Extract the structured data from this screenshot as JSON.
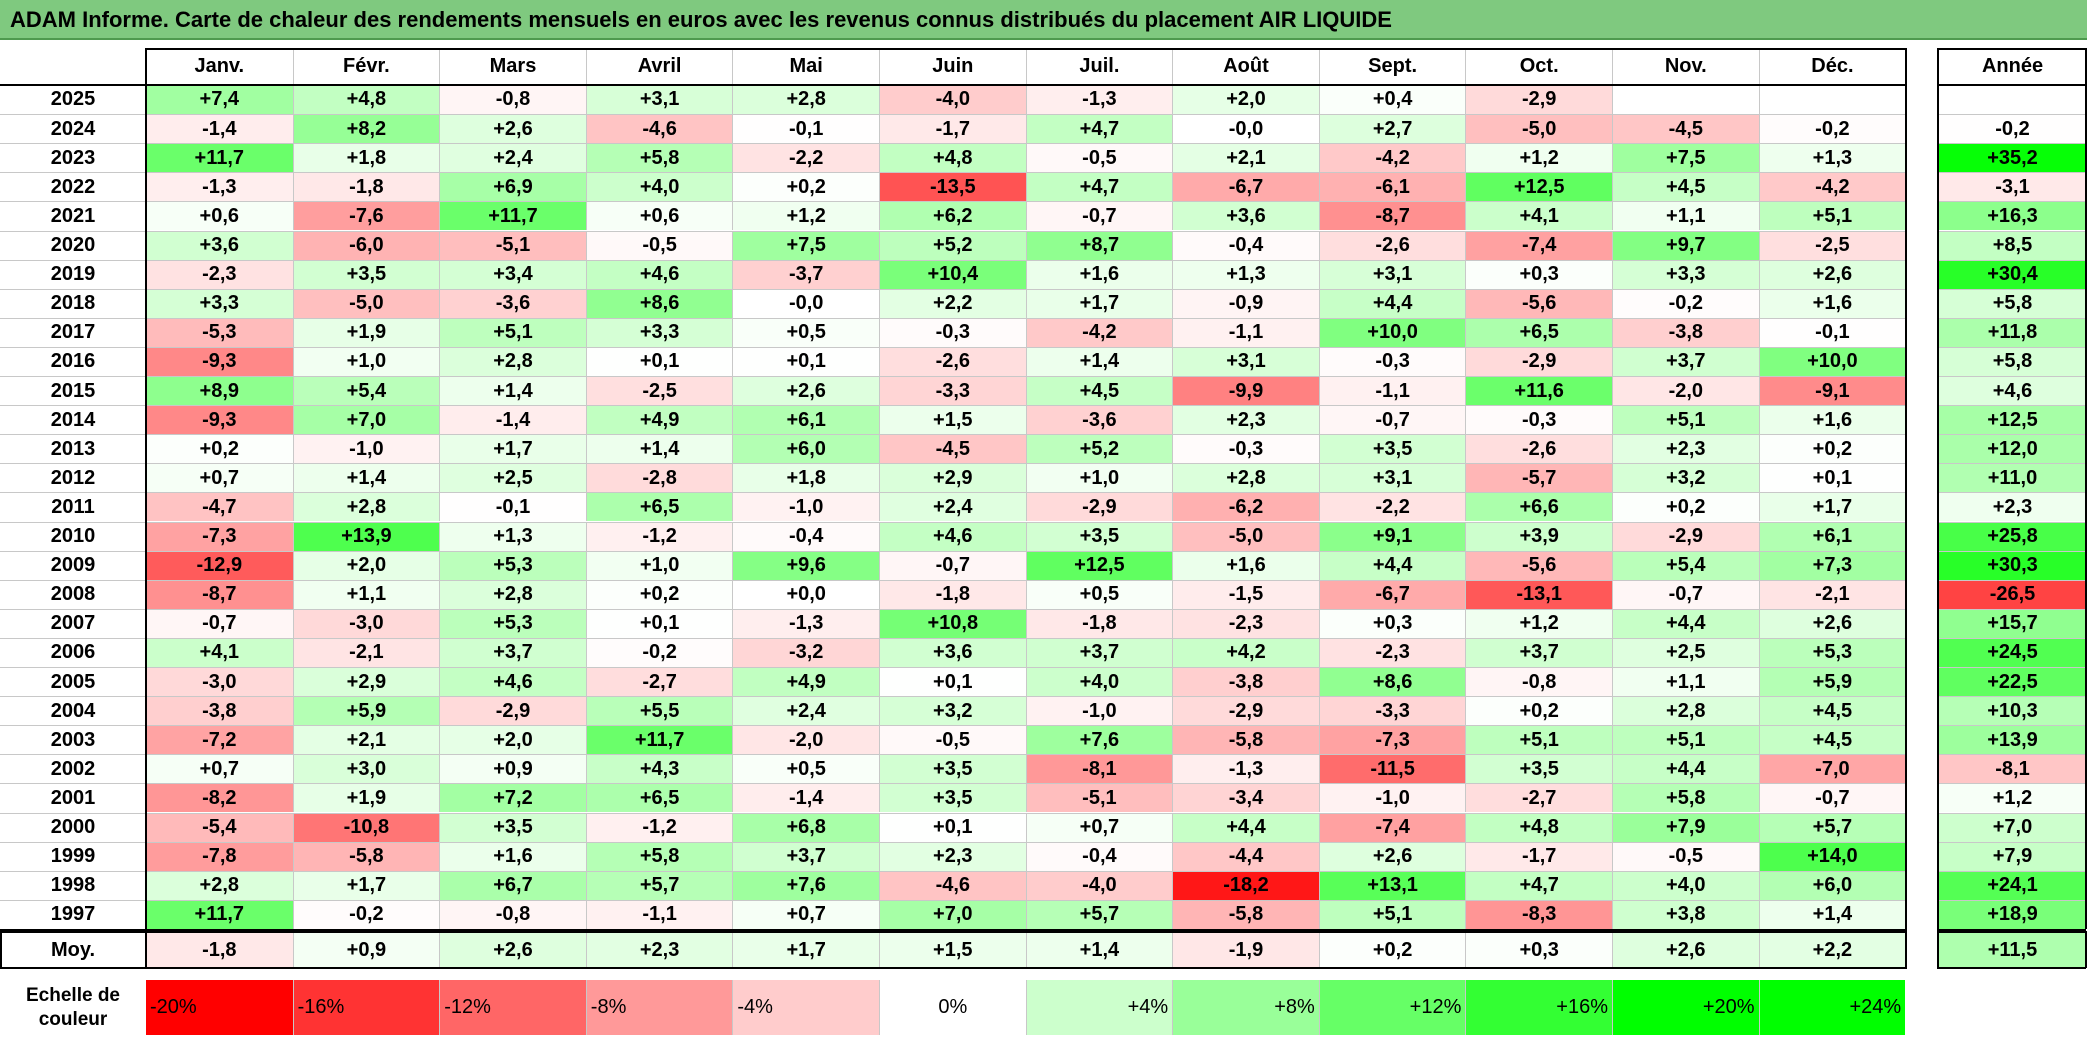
{
  "title": "ADAM Informe. Carte de chaleur des rendements mensuels en euros avec les revenus connus distribués du placement AIR LIQUIDE",
  "chart_data": {
    "type": "heatmap",
    "months": [
      "Janv.",
      "Févr.",
      "Mars",
      "Avril",
      "Mai",
      "Juin",
      "Juil.",
      "Août",
      "Sept.",
      "Oct.",
      "Nov.",
      "Déc."
    ],
    "year_column_label": "Année",
    "avg_label": "Moy.",
    "rows": [
      {
        "year": "2025",
        "values": [
          "+7,4",
          "+4,8",
          "-0,8",
          "+3,1",
          "+2,8",
          "-4,0",
          "-1,3",
          "+2,0",
          "+0,4",
          "-2,9",
          "",
          ""
        ],
        "annual": ""
      },
      {
        "year": "2024",
        "values": [
          "-1,4",
          "+8,2",
          "+2,6",
          "-4,6",
          "-0,1",
          "-1,7",
          "+4,7",
          "-0,0",
          "+2,7",
          "-5,0",
          "-4,5",
          "-0,2"
        ],
        "annual": "-0,2"
      },
      {
        "year": "2023",
        "values": [
          "+11,7",
          "+1,8",
          "+2,4",
          "+5,8",
          "-2,2",
          "+4,8",
          "-0,5",
          "+2,1",
          "-4,2",
          "+1,2",
          "+7,5",
          "+1,3"
        ],
        "annual": "+35,2"
      },
      {
        "year": "2022",
        "values": [
          "-1,3",
          "-1,8",
          "+6,9",
          "+4,0",
          "+0,2",
          "-13,5",
          "+4,7",
          "-6,7",
          "-6,1",
          "+12,5",
          "+4,5",
          "-4,2"
        ],
        "annual": "-3,1"
      },
      {
        "year": "2021",
        "values": [
          "+0,6",
          "-7,6",
          "+11,7",
          "+0,6",
          "+1,2",
          "+6,2",
          "-0,7",
          "+3,6",
          "-8,7",
          "+4,1",
          "+1,1",
          "+5,1"
        ],
        "annual": "+16,3"
      },
      {
        "year": "2020",
        "values": [
          "+3,6",
          "-6,0",
          "-5,1",
          "-0,5",
          "+7,5",
          "+5,2",
          "+8,7",
          "-0,4",
          "-2,6",
          "-7,4",
          "+9,7",
          "-2,5"
        ],
        "annual": "+8,5"
      },
      {
        "year": "2019",
        "values": [
          "-2,3",
          "+3,5",
          "+3,4",
          "+4,6",
          "-3,7",
          "+10,4",
          "+1,6",
          "+1,3",
          "+3,1",
          "+0,3",
          "+3,3",
          "+2,6"
        ],
        "annual": "+30,4"
      },
      {
        "year": "2018",
        "values": [
          "+3,3",
          "-5,0",
          "-3,6",
          "+8,6",
          "-0,0",
          "+2,2",
          "+1,7",
          "-0,9",
          "+4,4",
          "-5,6",
          "-0,2",
          "+1,6"
        ],
        "annual": "+5,8"
      },
      {
        "year": "2017",
        "values": [
          "-5,3",
          "+1,9",
          "+5,1",
          "+3,3",
          "+0,5",
          "-0,3",
          "-4,2",
          "-1,1",
          "+10,0",
          "+6,5",
          "-3,8",
          "-0,1"
        ],
        "annual": "+11,8"
      },
      {
        "year": "2016",
        "values": [
          "-9,3",
          "+1,0",
          "+2,8",
          "+0,1",
          "+0,1",
          "-2,6",
          "+1,4",
          "+3,1",
          "-0,3",
          "-2,9",
          "+3,7",
          "+10,0"
        ],
        "annual": "+5,8"
      },
      {
        "year": "2015",
        "values": [
          "+8,9",
          "+5,4",
          "+1,4",
          "-2,5",
          "+2,6",
          "-3,3",
          "+4,5",
          "-9,9",
          "-1,1",
          "+11,6",
          "-2,0",
          "-9,1"
        ],
        "annual": "+4,6"
      },
      {
        "year": "2014",
        "values": [
          "-9,3",
          "+7,0",
          "-1,4",
          "+4,9",
          "+6,1",
          "+1,5",
          "-3,6",
          "+2,3",
          "-0,7",
          "-0,3",
          "+5,1",
          "+1,6"
        ],
        "annual": "+12,5"
      },
      {
        "year": "2013",
        "values": [
          "+0,2",
          "-1,0",
          "+1,7",
          "+1,4",
          "+6,0",
          "-4,5",
          "+5,2",
          "-0,3",
          "+3,5",
          "-2,6",
          "+2,3",
          "+0,2"
        ],
        "annual": "+12,0"
      },
      {
        "year": "2012",
        "values": [
          "+0,7",
          "+1,4",
          "+2,5",
          "-2,8",
          "+1,8",
          "+2,9",
          "+1,0",
          "+2,8",
          "+3,1",
          "-5,7",
          "+3,2",
          "+0,1"
        ],
        "annual": "+11,0"
      },
      {
        "year": "2011",
        "values": [
          "-4,7",
          "+2,8",
          "-0,1",
          "+6,5",
          "-1,0",
          "+2,4",
          "-2,9",
          "-6,2",
          "-2,2",
          "+6,6",
          "+0,2",
          "+1,7"
        ],
        "annual": "+2,3"
      },
      {
        "year": "2010",
        "values": [
          "-7,3",
          "+13,9",
          "+1,3",
          "-1,2",
          "-0,4",
          "+4,6",
          "+3,5",
          "-5,0",
          "+9,1",
          "+3,9",
          "-2,9",
          "+6,1"
        ],
        "annual": "+25,8"
      },
      {
        "year": "2009",
        "values": [
          "-12,9",
          "+2,0",
          "+5,3",
          "+1,0",
          "+9,6",
          "-0,7",
          "+12,5",
          "+1,6",
          "+4,4",
          "-5,6",
          "+5,4",
          "+7,3"
        ],
        "annual": "+30,3"
      },
      {
        "year": "2008",
        "values": [
          "-8,7",
          "+1,1",
          "+2,8",
          "+0,2",
          "+0,0",
          "-1,8",
          "+0,5",
          "-1,5",
          "-6,7",
          "-13,1",
          "-0,7",
          "-2,1"
        ],
        "annual": "-26,5"
      },
      {
        "year": "2007",
        "values": [
          "-0,7",
          "-3,0",
          "+5,3",
          "+0,1",
          "-1,3",
          "+10,8",
          "-1,8",
          "-2,3",
          "+0,3",
          "+1,2",
          "+4,4",
          "+2,6"
        ],
        "annual": "+15,7"
      },
      {
        "year": "2006",
        "values": [
          "+4,1",
          "-2,1",
          "+3,7",
          "-0,2",
          "-3,2",
          "+3,6",
          "+3,7",
          "+4,2",
          "-2,3",
          "+3,7",
          "+2,5",
          "+5,3"
        ],
        "annual": "+24,5"
      },
      {
        "year": "2005",
        "values": [
          "-3,0",
          "+2,9",
          "+4,6",
          "-2,7",
          "+4,9",
          "+0,1",
          "+4,0",
          "-3,8",
          "+8,6",
          "-0,8",
          "+1,1",
          "+5,9"
        ],
        "annual": "+22,5"
      },
      {
        "year": "2004",
        "values": [
          "-3,8",
          "+5,9",
          "-2,9",
          "+5,5",
          "+2,4",
          "+3,2",
          "-1,0",
          "-2,9",
          "-3,3",
          "+0,2",
          "+2,8",
          "+4,5"
        ],
        "annual": "+10,3"
      },
      {
        "year": "2003",
        "values": [
          "-7,2",
          "+2,1",
          "+2,0",
          "+11,7",
          "-2,0",
          "-0,5",
          "+7,6",
          "-5,8",
          "-7,3",
          "+5,1",
          "+5,1",
          "+4,5"
        ],
        "annual": "+13,9"
      },
      {
        "year": "2002",
        "values": [
          "+0,7",
          "+3,0",
          "+0,9",
          "+4,3",
          "+0,5",
          "+3,5",
          "-8,1",
          "-1,3",
          "-11,5",
          "+3,5",
          "+4,4",
          "-7,0"
        ],
        "annual": "-8,1"
      },
      {
        "year": "2001",
        "values": [
          "-8,2",
          "+1,9",
          "+7,2",
          "+6,5",
          "-1,4",
          "+3,5",
          "-5,1",
          "-3,4",
          "-1,0",
          "-2,7",
          "+5,8",
          "-0,7"
        ],
        "annual": "+1,2"
      },
      {
        "year": "2000",
        "values": [
          "-5,4",
          "-10,8",
          "+3,5",
          "-1,2",
          "+6,8",
          "+0,1",
          "+0,7",
          "+4,4",
          "-7,4",
          "+4,8",
          "+7,9",
          "+5,7"
        ],
        "annual": "+7,0"
      },
      {
        "year": "1999",
        "values": [
          "-7,8",
          "-5,8",
          "+1,6",
          "+5,8",
          "+3,7",
          "+2,3",
          "-0,4",
          "-4,4",
          "+2,6",
          "-1,7",
          "-0,5",
          "+14,0"
        ],
        "annual": "+7,9"
      },
      {
        "year": "1998",
        "values": [
          "+2,8",
          "+1,7",
          "+6,7",
          "+5,7",
          "+7,6",
          "-4,6",
          "-4,0",
          "-18,2",
          "+13,1",
          "+4,7",
          "+4,0",
          "+6,0"
        ],
        "annual": "+24,1"
      },
      {
        "year": "1997",
        "values": [
          "+11,7",
          "-0,2",
          "-0,8",
          "-1,1",
          "+0,7",
          "+7,0",
          "+5,7",
          "-5,8",
          "+5,1",
          "-8,3",
          "+3,8",
          "+1,4"
        ],
        "annual": "+18,9"
      }
    ],
    "averages": {
      "values": [
        "-1,8",
        "+0,9",
        "+2,6",
        "+2,3",
        "+1,7",
        "+1,5",
        "+1,4",
        "-1,9",
        "+0,2",
        "+0,3",
        "+2,6",
        "+2,2"
      ],
      "annual": "+11,5"
    },
    "scale": {
      "label_line1": "Echelle de",
      "label_line2": "couleur",
      "steps": [
        "-20%",
        "-16%",
        "-12%",
        "-8%",
        "-4%",
        "0%",
        "+4%",
        "+8%",
        "+12%",
        "+16%",
        "+20%",
        "+24%"
      ],
      "step_values": [
        -20,
        -16,
        -12,
        -8,
        -4,
        0,
        4,
        8,
        12,
        16,
        20,
        24
      ]
    },
    "colors": {
      "negative_max": "#ff0000",
      "neutral": "#ffffff",
      "positive_max": "#00ff00",
      "title_bg": "#7fc97f"
    }
  }
}
